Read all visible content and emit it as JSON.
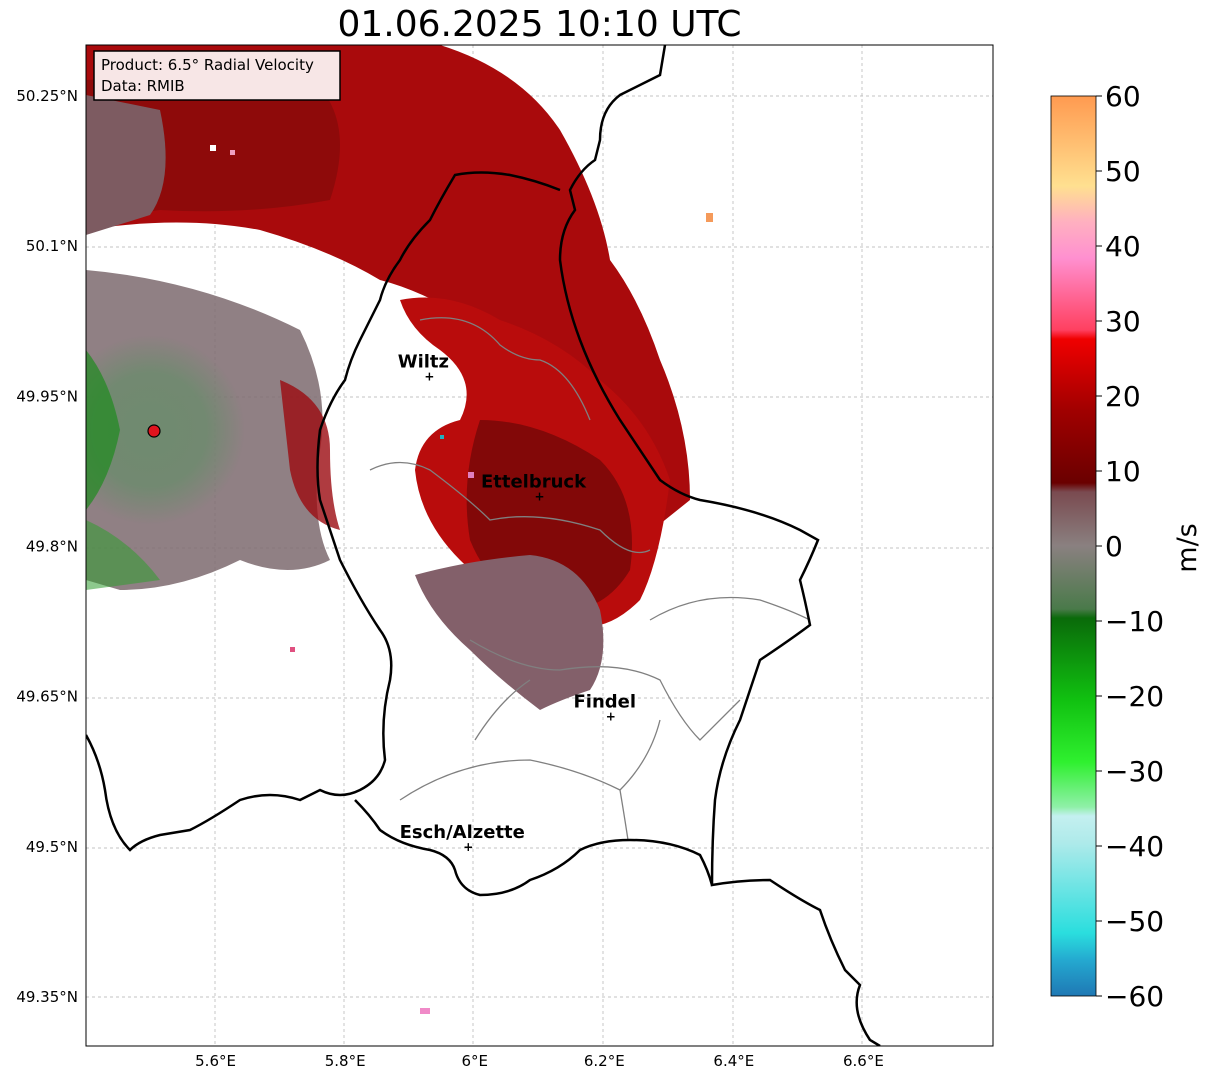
{
  "title": "01.06.2025 10:10 UTC",
  "info": {
    "product": "Product: 6.5° Radial Velocity",
    "data": "Data: RMIB"
  },
  "lat_ticks": [
    "50.25°N",
    "50.1°N",
    "49.95°N",
    "49.8°N",
    "49.65°N",
    "49.5°N",
    "49.35°N"
  ],
  "lon_ticks": [
    "5.6°E",
    "5.8°E",
    "6°E",
    "6.2°E",
    "6.4°E",
    "6.6°E"
  ],
  "cities": [
    {
      "name": "Wiltz",
      "lon": 5.93,
      "lat": 49.97
    },
    {
      "name": "Ettelbruck",
      "lon": 6.1,
      "lat": 49.85
    },
    {
      "name": "Findel",
      "lon": 6.21,
      "lat": 49.63
    },
    {
      "name": "Esch/Alzette",
      "lon": 5.99,
      "lat": 49.5
    }
  ],
  "colorbar": {
    "label": "m/s",
    "min": -60,
    "max": 60,
    "ticks": [
      "60",
      "50",
      "40",
      "30",
      "20",
      "10",
      "0",
      "−10",
      "−20",
      "−30",
      "−40",
      "−50",
      "−60"
    ]
  },
  "colors": {
    "border": "#000000",
    "admin": "#808080",
    "radar_site": "#e0141e"
  }
}
